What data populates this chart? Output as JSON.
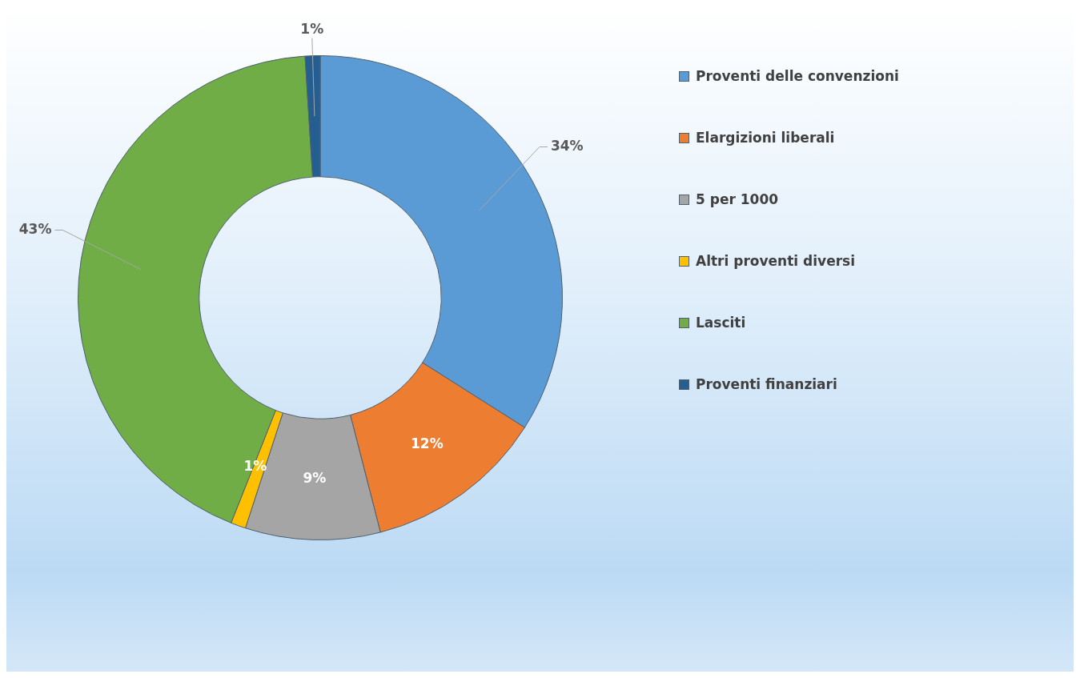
{
  "chart_data": {
    "type": "donut",
    "categories": [
      "Proventi delle convenzioni",
      "Elargizioni liberali",
      "5 per 1000",
      "Altri proventi diversi",
      "Lasciti",
      "Proventi finanziari"
    ],
    "values": [
      34,
      12,
      9,
      1,
      43,
      1
    ],
    "colors": [
      "#5b9bd5",
      "#ed7d31",
      "#a5a5a5",
      "#ffc000",
      "#70ad47",
      "#255e91"
    ],
    "value_labels": [
      "34%",
      "12%",
      "9%",
      "1%",
      "43%",
      "1%"
    ],
    "legend": "right"
  }
}
